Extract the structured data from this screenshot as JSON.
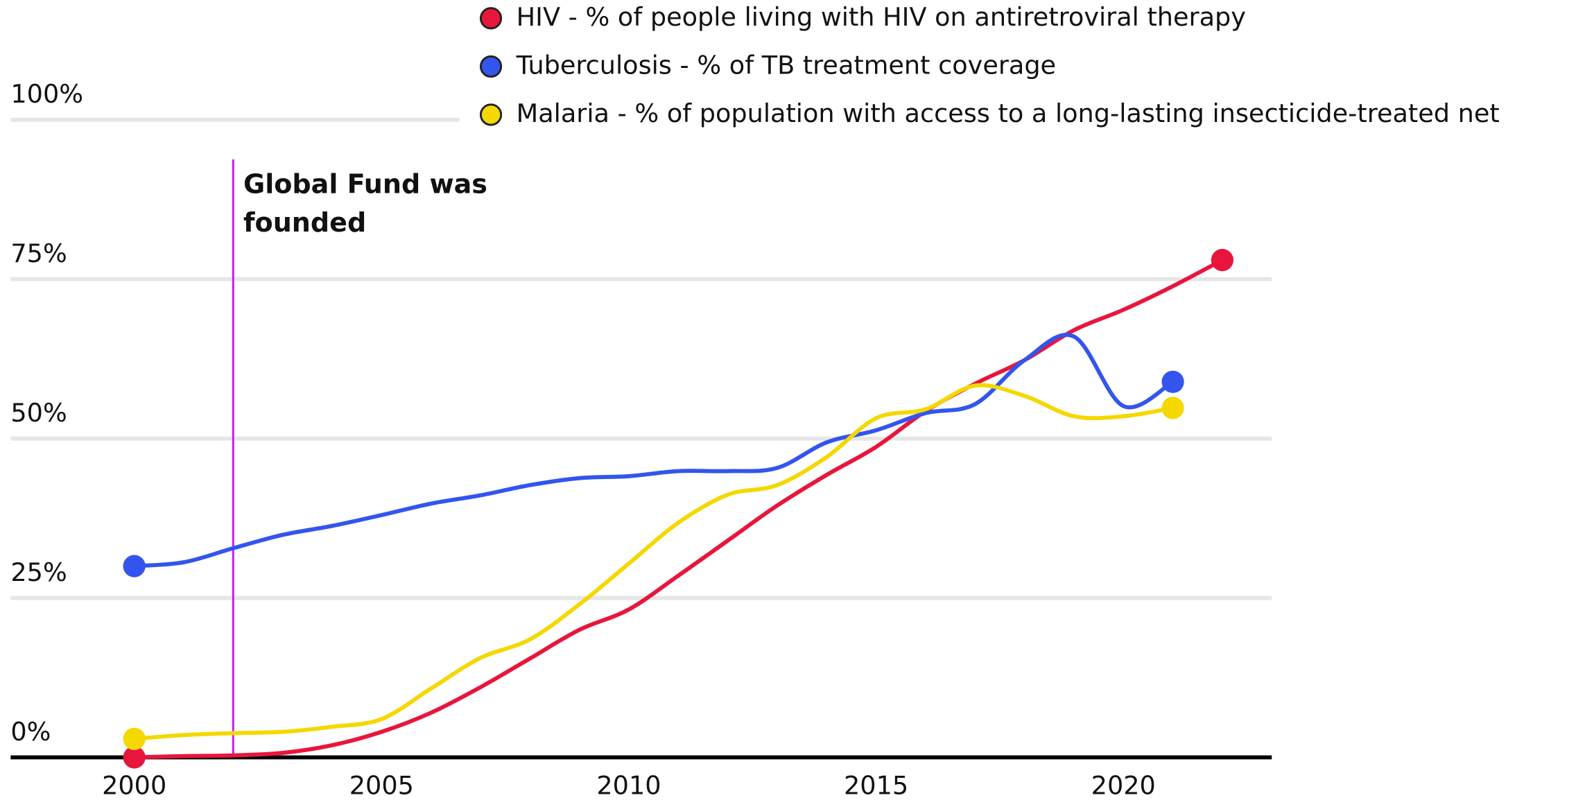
{
  "chart_data": {
    "type": "line",
    "x": [
      2000,
      2001,
      2002,
      2003,
      2004,
      2005,
      2006,
      2007,
      2008,
      2009,
      2010,
      2011,
      2012,
      2013,
      2014,
      2015,
      2016,
      2017,
      2018,
      2019,
      2020,
      2021,
      2022
    ],
    "series": [
      {
        "name": "HIV - % of people living with HIV on antiretroviral therapy",
        "color": "#e8163c",
        "values": [
          0,
          0.2,
          0.3,
          0.7,
          1.9,
          4,
          7,
          11,
          15.5,
          20,
          23.2,
          28.5,
          34,
          39.5,
          44.3,
          48.7,
          54.3,
          58.6,
          62.3,
          67,
          70.2,
          73.9,
          78
        ]
      },
      {
        "name": "Tuberculosis - % of TB treatment coverage",
        "color": "#3355ee",
        "values": [
          30,
          30.6,
          32.8,
          34.9,
          36.3,
          38,
          39.8,
          41.1,
          42.7,
          43.8,
          44.1,
          44.9,
          44.9,
          45.4,
          49.4,
          51.3,
          54,
          55.4,
          62.3,
          66,
          55.1,
          58.9,
          null
        ]
      },
      {
        "name": "Malaria - % of population with access to a long-lasting insecticide-treated net",
        "color": "#f5d800",
        "values": [
          2.9,
          3.5,
          3.8,
          4,
          4.8,
          6,
          10.8,
          15.6,
          18.5,
          24,
          30.4,
          36.8,
          41.2,
          42.7,
          47.1,
          53.2,
          54.6,
          58.3,
          56.7,
          53.5,
          53.5,
          54.8,
          null
        ]
      }
    ],
    "xlim": [
      1997.5,
      2023
    ],
    "xticks": [
      2000,
      2005,
      2010,
      2015,
      2020
    ],
    "ylim": [
      0,
      100
    ],
    "yticks": [
      {
        "value": 0,
        "label": "0%"
      },
      {
        "value": 25,
        "label": "25%"
      },
      {
        "value": 50,
        "label": "50%"
      },
      {
        "value": 75,
        "label": "75%"
      },
      {
        "value": 100,
        "label": "100%"
      }
    ],
    "grid": true,
    "legend": "top",
    "annotation": {
      "x": 2002,
      "lines": [
        "Global Fund was",
        "founded"
      ],
      "color": "#c020e0"
    }
  }
}
